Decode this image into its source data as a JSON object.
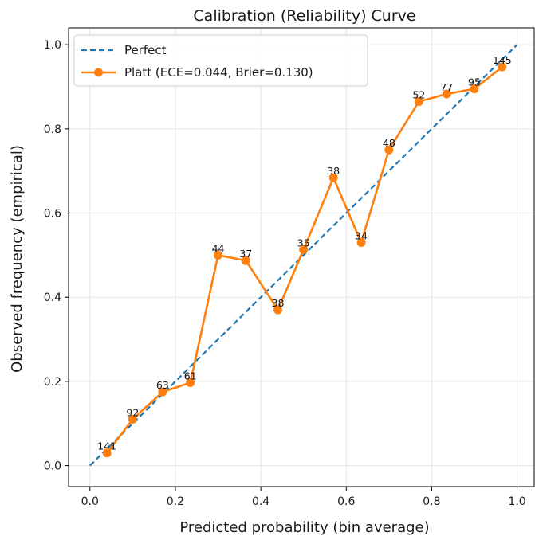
{
  "chart_data": {
    "type": "line",
    "title": "Calibration (Reliability) Curve",
    "xlabel": "Predicted probability (bin average)",
    "ylabel": "Observed frequency (empirical)",
    "xlim": [
      -0.05,
      1.04
    ],
    "ylim": [
      -0.05,
      1.04
    ],
    "xticks": [
      0.0,
      0.2,
      0.4,
      0.6,
      0.8,
      1.0
    ],
    "yticks": [
      0.0,
      0.2,
      0.4,
      0.6,
      0.8,
      1.0
    ],
    "xtick_labels": [
      "0.0",
      "0.2",
      "0.4",
      "0.6",
      "0.8",
      "1.0"
    ],
    "ytick_labels": [
      "0.0",
      "0.2",
      "0.4",
      "0.6",
      "0.8",
      "1.0"
    ],
    "grid": true,
    "legend_position": "upper-left",
    "series": [
      {
        "name": "Perfect",
        "style": "dashed",
        "color": "#1f77b4",
        "x": [
          0.0,
          1.0
        ],
        "y": [
          0.0,
          1.0
        ]
      },
      {
        "name": "Platt (ECE=0.044, Brier=0.130)",
        "style": "solid-markers",
        "color": "#ff7f0e",
        "x": [
          0.04,
          0.1,
          0.17,
          0.235,
          0.3,
          0.365,
          0.44,
          0.5,
          0.57,
          0.635,
          0.7,
          0.77,
          0.835,
          0.9,
          0.965
        ],
        "y": [
          0.03,
          0.11,
          0.175,
          0.197,
          0.5,
          0.487,
          0.37,
          0.513,
          0.684,
          0.53,
          0.75,
          0.865,
          0.883,
          0.895,
          0.947
        ],
        "counts": [
          "141",
          "92",
          "63",
          "61",
          "44",
          "37",
          "38",
          "35",
          "38",
          "34",
          "48",
          "52",
          "77",
          "95",
          "145"
        ]
      }
    ]
  }
}
